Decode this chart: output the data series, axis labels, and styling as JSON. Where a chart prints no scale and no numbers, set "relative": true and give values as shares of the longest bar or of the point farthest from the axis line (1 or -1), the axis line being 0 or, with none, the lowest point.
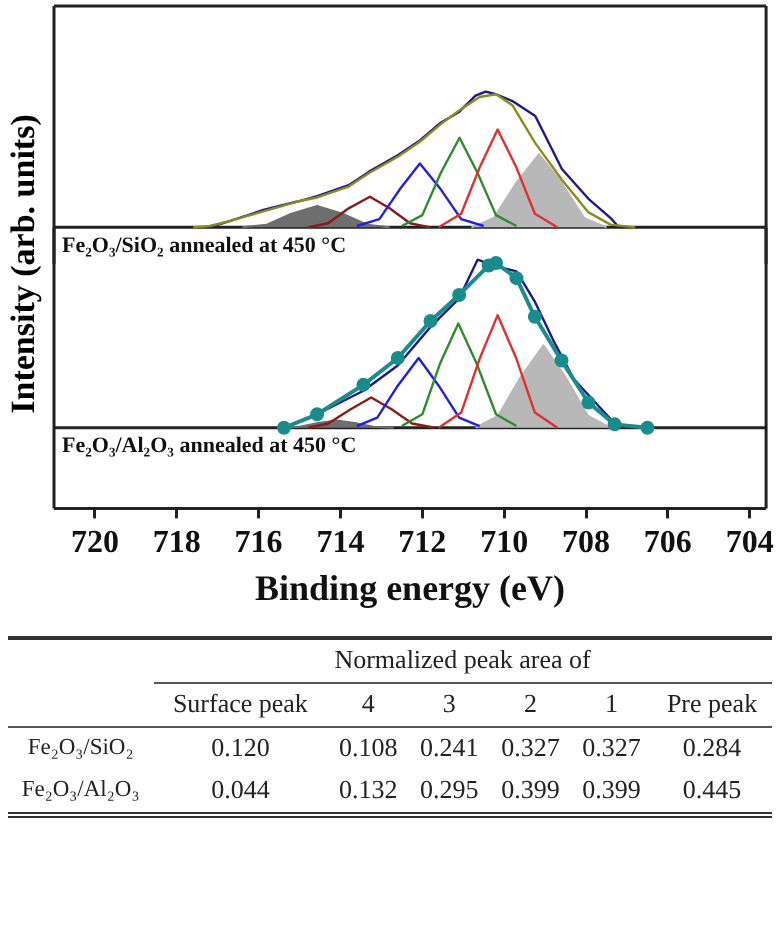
{
  "chart_data": [
    {
      "type": "line",
      "relative": true,
      "xlim": [
        721,
        703.6
      ],
      "tick_labels": false,
      "ylabel": "Intensity (arb. units)",
      "annotations": [
        "Fe₂O₃/SiO₂ annealed at 450 °C"
      ],
      "series": [
        {
          "type": "area",
          "color": "#6e6e6e",
          "x": [
            716.4,
            715.8,
            715.2,
            714.57,
            713.95,
            713.35,
            712.8
          ],
          "values": [
            0,
            0.02,
            0.1,
            0.157,
            0.1,
            0.02,
            0
          ]
        },
        {
          "type": "area",
          "color": "#b8b8b8",
          "x": [
            710.8,
            710.25,
            709.7,
            709.15,
            708.6,
            708.05,
            707.5
          ],
          "values": [
            0,
            0.07,
            0.33,
            0.54,
            0.33,
            0.07,
            0
          ]
        },
        {
          "color": "#8b1a1a",
          "x": [
            714.8,
            714.3,
            713.8,
            713.28,
            712.8,
            712.3,
            711.8
          ],
          "values": [
            0,
            0.03,
            0.14,
            0.225,
            0.14,
            0.03,
            0
          ]
        },
        {
          "color": "#2020e0",
          "x": [
            713.6,
            713.05,
            712.55,
            712.06,
            711.55,
            711.05,
            710.5
          ],
          "values": [
            0.01,
            0.06,
            0.28,
            0.47,
            0.28,
            0.06,
            0.01
          ]
        },
        {
          "color": "#2e8b2e",
          "x": [
            712.5,
            712.0,
            711.55,
            711.09,
            710.65,
            710.2,
            709.7
          ],
          "values": [
            0.01,
            0.09,
            0.4,
            0.66,
            0.4,
            0.09,
            0.01
          ]
        },
        {
          "color": "#e03030",
          "x": [
            711.6,
            711.05,
            710.6,
            710.16,
            709.7,
            709.25,
            708.7
          ],
          "values": [
            0,
            0.1,
            0.44,
            0.72,
            0.44,
            0.1,
            0
          ]
        },
        {
          "color": "#1a1a8c",
          "x": [
            717.2,
            716.67,
            715.86,
            715.05,
            714.57,
            713.8,
            713.3,
            712.6,
            712.06,
            711.55,
            711.1,
            710.7,
            710.45,
            710.2,
            709.8,
            709.24,
            708.59,
            707.94,
            707.37,
            707.2
          ],
          "values": [
            0,
            0.05,
            0.13,
            0.19,
            0.23,
            0.31,
            0.41,
            0.53,
            0.64,
            0.77,
            0.85,
            0.97,
            1.0,
            0.98,
            0.93,
            0.82,
            0.43,
            0.21,
            0.06,
            0
          ]
        },
        {
          "color": "#8c8c1e",
          "x": [
            717.6,
            717.2,
            716.67,
            715.86,
            715.05,
            714.57,
            713.8,
            713.3,
            712.6,
            712.06,
            711.55,
            711.1,
            710.6,
            710.2,
            709.8,
            709.24,
            708.59,
            707.94,
            707.4,
            706.8
          ],
          "values": [
            0,
            0.01,
            0.05,
            0.12,
            0.19,
            0.22,
            0.3,
            0.4,
            0.52,
            0.63,
            0.76,
            0.86,
            0.96,
            0.98,
            0.9,
            0.62,
            0.35,
            0.11,
            0.02,
            0
          ]
        }
      ]
    },
    {
      "type": "line",
      "relative": true,
      "xlim": [
        721,
        703.6
      ],
      "xticks": [
        720,
        718,
        716,
        714,
        712,
        710,
        708,
        706,
        704
      ],
      "tick_labels": "x",
      "xlabel": "Binding energy (eV)",
      "annotations": [
        "Fe₂O₃/Al₂O₃ annealed at 450 °C"
      ],
      "series": [
        {
          "type": "area",
          "color": "#6e6e6e",
          "x": [
            715.5,
            715.0,
            714.6,
            714.1,
            713.6,
            713.2,
            712.7
          ],
          "values": [
            0,
            0.006,
            0.026,
            0.043,
            0.026,
            0.006,
            0
          ]
        },
        {
          "type": "area",
          "color": "#b8b8b8",
          "x": [
            710.7,
            710.15,
            709.6,
            709.04,
            708.5,
            707.95,
            707.4
          ],
          "values": [
            0,
            0.07,
            0.3,
            0.49,
            0.3,
            0.07,
            0
          ]
        },
        {
          "color": "#8b1a1a",
          "x": [
            714.8,
            714.3,
            713.75,
            713.25,
            712.75,
            712.25,
            711.7
          ],
          "values": [
            0,
            0.025,
            0.11,
            0.18,
            0.11,
            0.025,
            0
          ]
        },
        {
          "color": "#2020e0",
          "x": [
            713.6,
            713.1,
            712.6,
            712.09,
            711.6,
            711.1,
            710.6
          ],
          "values": [
            0.01,
            0.06,
            0.25,
            0.415,
            0.25,
            0.06,
            0.01
          ]
        },
        {
          "color": "#2e8b2e",
          "x": [
            712.5,
            712.0,
            711.57,
            711.12,
            710.67,
            710.2,
            709.7
          ],
          "values": [
            0.01,
            0.08,
            0.38,
            0.62,
            0.38,
            0.08,
            0.01
          ]
        },
        {
          "color": "#e03030",
          "x": [
            711.6,
            711.05,
            710.6,
            710.16,
            709.7,
            709.25,
            708.7
          ],
          "values": [
            0,
            0.09,
            0.41,
            0.67,
            0.41,
            0.09,
            0
          ]
        },
        {
          "color": "#1a1a8c",
          "x": [
            715.38,
            714.57,
            713.44,
            712.6,
            711.8,
            711.1,
            710.65,
            710.2,
            709.7,
            709.25,
            708.8,
            708.3,
            707.66,
            707.2
          ],
          "values": [
            0,
            0.08,
            0.22,
            0.37,
            0.6,
            0.77,
            1.0,
            0.96,
            0.93,
            0.75,
            0.52,
            0.29,
            0.12,
            0
          ]
        },
        {
          "color": "#1a8c8c",
          "marker": "circle",
          "x": [
            715.38,
            714.57,
            713.44,
            712.6,
            711.8,
            711.1,
            710.38,
            710.2,
            709.7,
            709.25,
            708.6,
            707.94,
            707.3,
            706.5
          ],
          "values": [
            0,
            0.08,
            0.255,
            0.415,
            0.635,
            0.79,
            0.965,
            0.98,
            0.89,
            0.66,
            0.4,
            0.15,
            0.02,
            0
          ]
        }
      ]
    },
    {
      "type": "heatmap",
      "title": "Normalized peak area of",
      "categories": [
        "Surface peak",
        "4",
        "3",
        "2",
        "1",
        "Pre peak"
      ],
      "y_categories": [
        "Fe₂O₃/SiO₂",
        "Fe₂O₃/Al₂O₃"
      ],
      "data_labels": true,
      "cells": [
        [
          0.12,
          0.108,
          0.241,
          0.327,
          0.327,
          0.284
        ],
        [
          0.044,
          0.132,
          0.295,
          0.399,
          0.399,
          0.445
        ]
      ],
      "cell_labels": [
        [
          "0.120",
          "0.108",
          "0.241",
          "0.327",
          "0.327",
          "0.284"
        ],
        [
          "0.044",
          "0.132",
          "0.295",
          "0.399",
          "0.399",
          "0.445"
        ]
      ]
    }
  ]
}
